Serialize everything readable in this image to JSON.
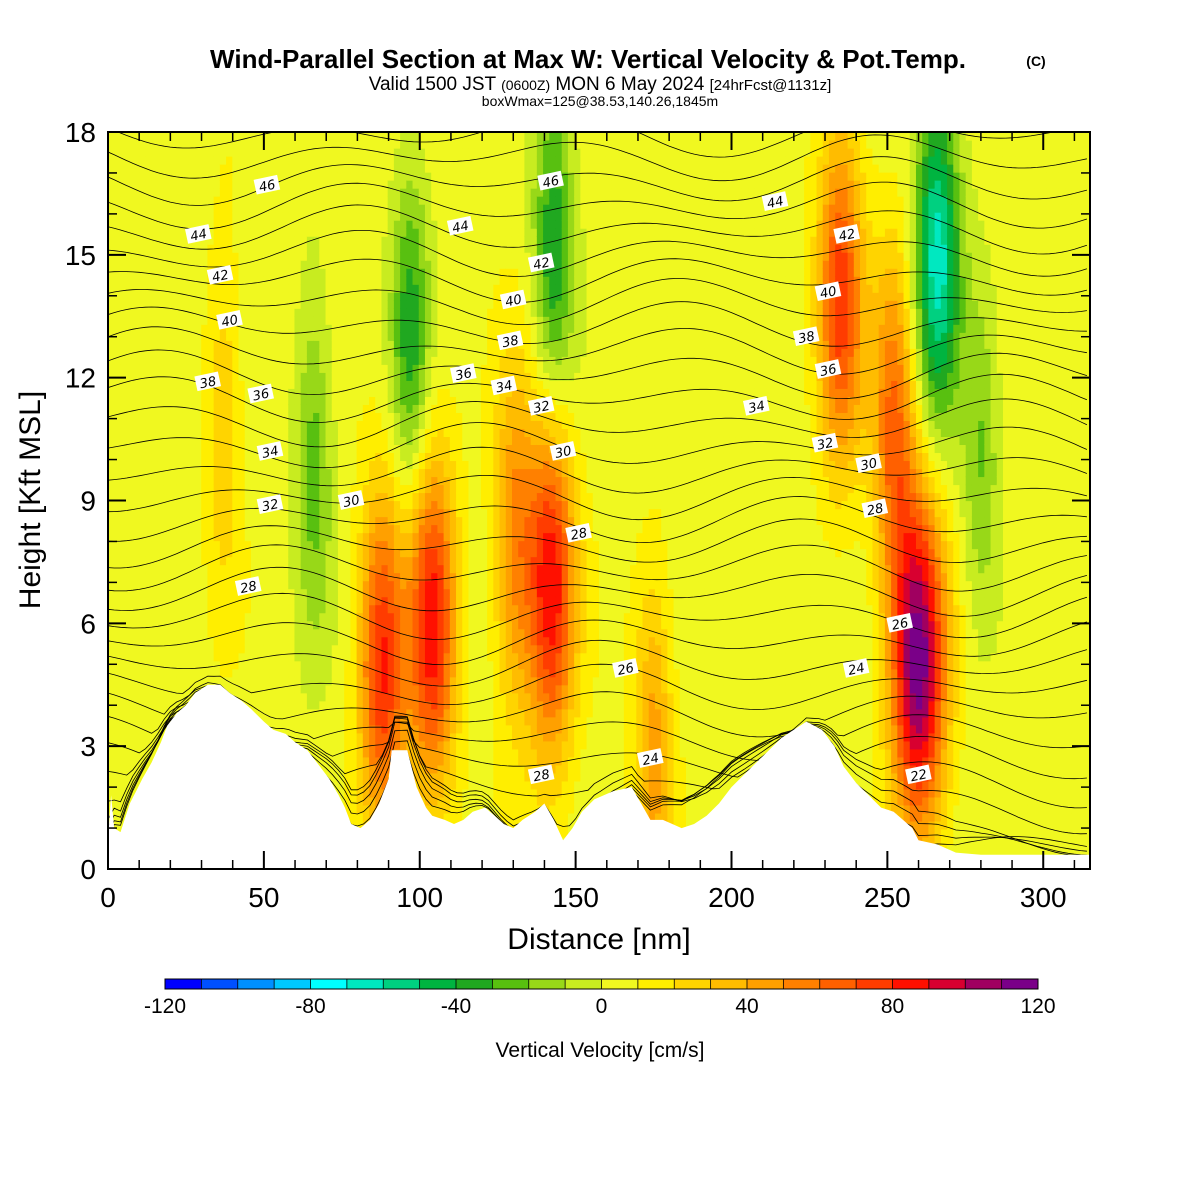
{
  "title": {
    "main": "Wind-Parallel Section at Max W: Vertical Velocity & Pot.Temp.",
    "copyright": "(C)",
    "valid_a": "Valid 1500 JST",
    "valid_utc": "(0600Z)",
    "valid_b": "MON 6 May 2024",
    "fcst": "[24hrFcst@1131z]",
    "boxmax": "boxWmax=125@38.53,140.26,1845m"
  },
  "chart_data": {
    "type": "heatmap",
    "xlabel": "Distance [nm]",
    "ylabel": "Height [Kft MSL]",
    "xlim": [
      0,
      315
    ],
    "ylim": [
      0,
      18
    ],
    "x_ticks": [
      "0",
      "50",
      "100",
      "150",
      "200",
      "250",
      "300"
    ],
    "y_ticks": [
      "0",
      "3",
      "6",
      "9",
      "12",
      "15",
      "18"
    ],
    "colorbar": {
      "label": "Vertical Velocity [cm/s]",
      "range": [
        -120,
        120
      ],
      "tick_labels": [
        "-120",
        "-80",
        "-40",
        "0",
        "40",
        "80",
        "120"
      ],
      "colors": [
        "#0000ff",
        "#0050ff",
        "#0090ff",
        "#00c8ff",
        "#00ffff",
        "#00e8c0",
        "#00d080",
        "#00b440",
        "#20a820",
        "#58c010",
        "#98d818",
        "#c8ec20",
        "#f0f820",
        "#ffee00",
        "#ffd400",
        "#ffbc00",
        "#ffa000",
        "#ff8000",
        "#ff6000",
        "#ff3c00",
        "#ff1000",
        "#d80030",
        "#a00060",
        "#7a0088"
      ]
    },
    "w_features": [
      {
        "x": 37,
        "z": 11,
        "w": 25
      },
      {
        "x": 66,
        "z": 10,
        "w": -30
      },
      {
        "x": 88,
        "z": 5,
        "w": 75
      },
      {
        "x": 97,
        "z": 13,
        "w": -40
      },
      {
        "x": 104,
        "z": 6,
        "w": 80
      },
      {
        "x": 130,
        "z": 8,
        "w": 45
      },
      {
        "x": 142,
        "z": 7,
        "w": 85
      },
      {
        "x": 143,
        "z": 15,
        "w": -45
      },
      {
        "x": 175,
        "z": 3,
        "w": 40
      },
      {
        "x": 235,
        "z": 14,
        "w": 70
      },
      {
        "x": 252,
        "z": 11,
        "w": 55
      },
      {
        "x": 260,
        "z": 5,
        "w": 110
      },
      {
        "x": 266,
        "z": 15,
        "w": -70
      },
      {
        "x": 280,
        "z": 10,
        "w": -25
      }
    ],
    "theta_contours": {
      "units": "°C",
      "labels": [
        {
          "text": "46",
          "x": 51,
          "z": 16.7
        },
        {
          "text": "46",
          "x": 142,
          "z": 16.8
        },
        {
          "text": "44",
          "x": 29,
          "z": 15.5
        },
        {
          "text": "44",
          "x": 113,
          "z": 15.7
        },
        {
          "text": "44",
          "x": 214,
          "z": 16.3
        },
        {
          "text": "42",
          "x": 36,
          "z": 14.5
        },
        {
          "text": "42",
          "x": 139,
          "z": 14.8
        },
        {
          "text": "42",
          "x": 237,
          "z": 15.5
        },
        {
          "text": "40",
          "x": 39,
          "z": 13.4
        },
        {
          "text": "40",
          "x": 130,
          "z": 13.9
        },
        {
          "text": "40",
          "x": 231,
          "z": 14.1
        },
        {
          "text": "38",
          "x": 32,
          "z": 11.9
        },
        {
          "text": "38",
          "x": 129,
          "z": 12.9
        },
        {
          "text": "38",
          "x": 224,
          "z": 13.0
        },
        {
          "text": "36",
          "x": 49,
          "z": 11.6
        },
        {
          "text": "36",
          "x": 114,
          "z": 12.1
        },
        {
          "text": "36",
          "x": 231,
          "z": 12.2
        },
        {
          "text": "34",
          "x": 52,
          "z": 10.2
        },
        {
          "text": "34",
          "x": 127,
          "z": 11.8
        },
        {
          "text": "34",
          "x": 208,
          "z": 11.3
        },
        {
          "text": "32",
          "x": 139,
          "z": 11.3
        },
        {
          "text": "32",
          "x": 52,
          "z": 8.9
        },
        {
          "text": "32",
          "x": 230,
          "z": 10.4
        },
        {
          "text": "30",
          "x": 78,
          "z": 9.0
        },
        {
          "text": "30",
          "x": 146,
          "z": 10.2
        },
        {
          "text": "30",
          "x": 244,
          "z": 9.9
        },
        {
          "text": "28",
          "x": 45,
          "z": 6.9
        },
        {
          "text": "28",
          "x": 151,
          "z": 8.2
        },
        {
          "text": "28",
          "x": 246,
          "z": 8.8
        },
        {
          "text": "28",
          "x": 139,
          "z": 2.3
        },
        {
          "text": "26",
          "x": 166,
          "z": 4.9
        },
        {
          "text": "26",
          "x": 254,
          "z": 6.0
        },
        {
          "text": "24",
          "x": 174,
          "z": 2.7
        },
        {
          "text": "24",
          "x": 240,
          "z": 4.9
        },
        {
          "text": "22",
          "x": 260,
          "z": 2.3
        }
      ]
    },
    "terrain_kft": [
      [
        0,
        0.7
      ],
      [
        1,
        1.8
      ],
      [
        2,
        1.0
      ],
      [
        4,
        0.9
      ],
      [
        7,
        1.6
      ],
      [
        9,
        1.9
      ],
      [
        11,
        2.2
      ],
      [
        14,
        2.6
      ],
      [
        17,
        3.1
      ],
      [
        19,
        3.5
      ],
      [
        22,
        3.8
      ],
      [
        25,
        4.0
      ],
      [
        28,
        4.3
      ],
      [
        32,
        4.5
      ],
      [
        36,
        4.5
      ],
      [
        39,
        4.3
      ],
      [
        43,
        4.1
      ],
      [
        46,
        3.9
      ],
      [
        50,
        3.6
      ],
      [
        53,
        3.4
      ],
      [
        57,
        3.3
      ],
      [
        60,
        3.1
      ],
      [
        64,
        2.9
      ],
      [
        68,
        2.5
      ],
      [
        71,
        2.2
      ],
      [
        74,
        1.8
      ],
      [
        76,
        1.5
      ],
      [
        78,
        1.1
      ],
      [
        81,
        1.0
      ],
      [
        84,
        1.2
      ],
      [
        87,
        1.6
      ],
      [
        90,
        2.2
      ],
      [
        91,
        2.9
      ],
      [
        96,
        2.9
      ],
      [
        99,
        2.0
      ],
      [
        102,
        1.5
      ],
      [
        104,
        1.3
      ],
      [
        108,
        1.2
      ],
      [
        111,
        1.1
      ],
      [
        114,
        1.2
      ],
      [
        117,
        1.4
      ],
      [
        121,
        1.5
      ],
      [
        124,
        1.3
      ],
      [
        127,
        1.1
      ],
      [
        130,
        1.0
      ],
      [
        133,
        1.2
      ],
      [
        137,
        1.4
      ],
      [
        140,
        1.6
      ],
      [
        143,
        1.2
      ],
      [
        146,
        0.7
      ],
      [
        149,
        1.0
      ],
      [
        152,
        1.4
      ],
      [
        156,
        1.7
      ],
      [
        162,
        1.9
      ],
      [
        168,
        2.0
      ],
      [
        171,
        1.6
      ],
      [
        174,
        1.2
      ],
      [
        178,
        1.2
      ],
      [
        181,
        1.1
      ],
      [
        184,
        1.0
      ],
      [
        188,
        1.1
      ],
      [
        192,
        1.3
      ],
      [
        196,
        1.6
      ],
      [
        200,
        2.0
      ],
      [
        204,
        2.3
      ],
      [
        208,
        2.6
      ],
      [
        212,
        2.9
      ],
      [
        216,
        3.2
      ],
      [
        220,
        3.4
      ],
      [
        224,
        3.6
      ],
      [
        229,
        3.4
      ],
      [
        233,
        3.0
      ],
      [
        236,
        2.5
      ],
      [
        240,
        2.1
      ],
      [
        244,
        1.8
      ],
      [
        248,
        1.5
      ],
      [
        252,
        1.4
      ],
      [
        255,
        1.2
      ],
      [
        258,
        1.0
      ],
      [
        260,
        0.7
      ],
      [
        266,
        0.6
      ],
      [
        272,
        0.4
      ],
      [
        280,
        0.35
      ],
      [
        290,
        0.35
      ],
      [
        300,
        0.35
      ],
      [
        315,
        0.35
      ]
    ]
  }
}
